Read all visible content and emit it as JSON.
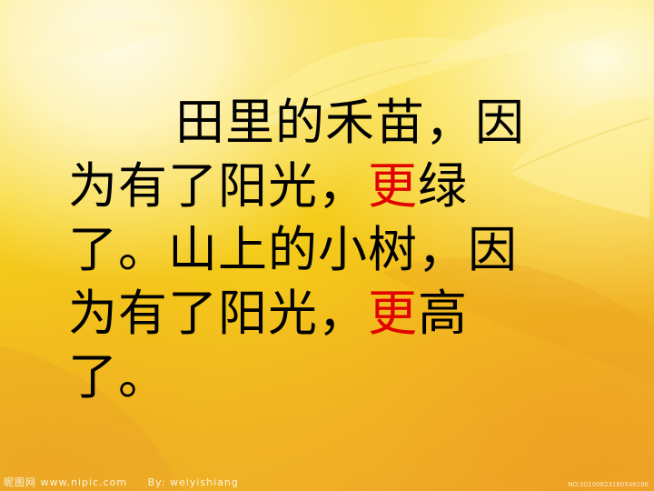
{
  "slide": {
    "lines": [
      {
        "segments": [
          "田里的禾苗，因"
        ]
      },
      {
        "segments": [
          "为有了阳光，",
          "更",
          "绿"
        ]
      },
      {
        "segments": [
          "了。山上的小树，因"
        ]
      },
      {
        "segments": [
          "为有了阳光，",
          "更",
          "高"
        ]
      },
      {
        "segments": [
          "了。"
        ]
      }
    ],
    "highlight_color": "#e00000",
    "text_color": "#000000"
  },
  "watermark": {
    "site": "昵图网 www.nipic.com",
    "author": "By: weiyishiang",
    "id": "NO:20100823160548196"
  },
  "background": {
    "primary": "#f6d21a",
    "light": "#fffbe8",
    "shade": "#eca82c"
  },
  "icons": [
    "leaf-icon"
  ]
}
